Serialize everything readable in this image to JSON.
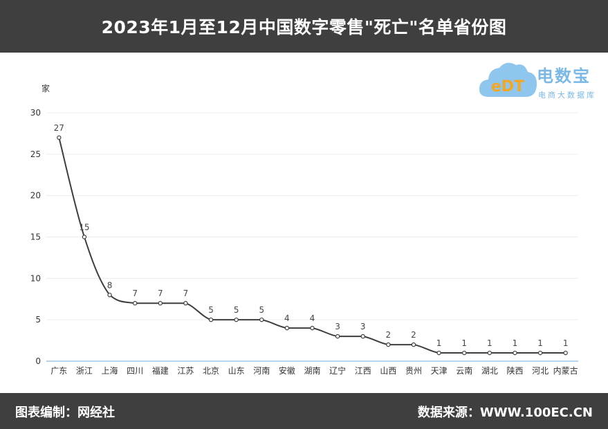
{
  "header": {
    "title": "2023年1月至12月中国数字零售\"死亡\"名单省份图"
  },
  "logo": {
    "brand": "电数宝",
    "tagline": "电商大数据库",
    "mark": "eDT"
  },
  "footer": {
    "left": "图表编制：网经社",
    "right": "数据来源：WWW.100EC.CN"
  },
  "colors": {
    "bar_bg": "#3f3f3f",
    "line": "#3d3d3d",
    "axis": "#6fa8dc",
    "logo": "#7ab8e6"
  },
  "chart_data": {
    "type": "line",
    "title": "2023年1月至12月中国数字零售\"死亡\"名单省份图",
    "ylabel": "家",
    "xlabel": "",
    "ylim": [
      0,
      30
    ],
    "yticks": [
      0,
      5,
      10,
      15,
      20,
      25,
      30
    ],
    "grid": true,
    "categories": [
      "广东",
      "浙江",
      "上海",
      "四川",
      "福建",
      "江苏",
      "北京",
      "山东",
      "河南",
      "安徽",
      "湖南",
      "辽宁",
      "江西",
      "山西",
      "贵州",
      "天津",
      "云南",
      "湖北",
      "陕西",
      "河北",
      "内蒙古"
    ],
    "values": [
      27,
      15,
      8,
      7,
      7,
      7,
      5,
      5,
      5,
      4,
      4,
      3,
      3,
      2,
      2,
      1,
      1,
      1,
      1,
      1,
      1
    ]
  }
}
